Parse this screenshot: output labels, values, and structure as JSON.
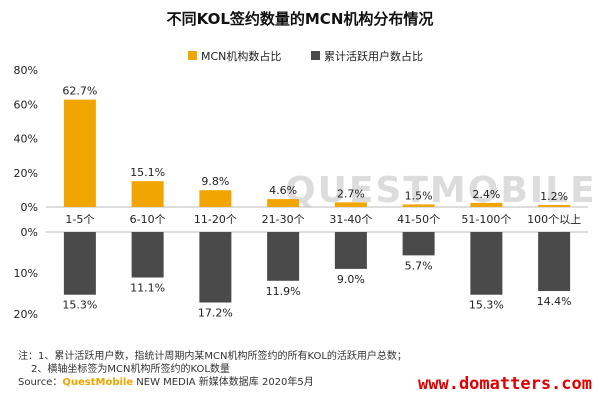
{
  "chart_data": {
    "type": "bar",
    "title": "不同KOL签约数量的MCN机构分布情况",
    "categories": [
      "1-5个",
      "6-10个",
      "11-20个",
      "21-30个",
      "31-40个",
      "41-50个",
      "51-100个",
      "100个以上"
    ],
    "series": [
      {
        "name": "MCN机构数占比",
        "color": "#f0a500",
        "position": "top",
        "values": [
          62.7,
          15.1,
          9.8,
          4.6,
          2.7,
          1.5,
          2.4,
          1.2
        ],
        "labels": [
          "62.7%",
          "15.1%",
          "9.8%",
          "4.6%",
          "2.7%",
          "1.5%",
          "2.4%",
          "1.2%"
        ]
      },
      {
        "name": "累计活跃用户数占比",
        "color": "#4a4a4a",
        "position": "bottom",
        "values": [
          15.3,
          11.1,
          17.2,
          11.9,
          9.0,
          5.7,
          15.3,
          14.4
        ],
        "labels": [
          "15.3%",
          "11.1%",
          "17.2%",
          "11.9%",
          "9.0%",
          "5.7%",
          "15.3%",
          "14.4%"
        ]
      }
    ],
    "top_axis": {
      "ylim": [
        0,
        80
      ],
      "ticks": [
        "80%",
        "60%",
        "40%",
        "20%",
        "0%"
      ],
      "tick_values": [
        80,
        60,
        40,
        20,
        0
      ]
    },
    "bottom_axis": {
      "ylim": [
        0,
        20
      ],
      "ticks": [
        "0%",
        "10%",
        "20%"
      ],
      "tick_values": [
        0,
        10,
        20
      ]
    },
    "legend_placement": "top-right",
    "grid": false
  },
  "watermark": "QUESTMOBILE",
  "notes": {
    "line1": "注：1、累计活跃用户数，指统计周期内某MCN机构所签约的所有KOL的活跃用户总数；",
    "line2": "2、横轴坐标签为MCN机构所签约的KOL数量",
    "source_prefix": "Source：",
    "source_brand": "QuestMobile",
    "source_suffix": " NEW MEDIA 新媒体数据库 2020年5月"
  },
  "site": "www.domatters.com"
}
